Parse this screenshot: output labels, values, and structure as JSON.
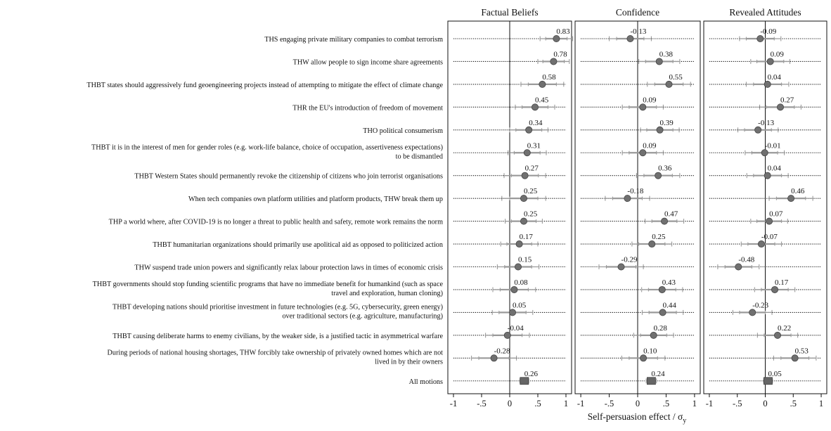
{
  "chart_data": {
    "type": "scatter",
    "subtype": "forest-plot-with-confidence-intervals",
    "x_label_parts": {
      "main": "Self-persuasion effect / σ",
      "subscript": "y"
    },
    "xlim": [
      -1.1,
      1.1
    ],
    "x_ticks": [
      -1,
      -0.5,
      0,
      0.5,
      1
    ],
    "x_tick_labels": [
      "-1",
      "-.5",
      "0",
      ".5",
      "1"
    ],
    "reference_line": 0,
    "grid": false,
    "colors": {
      "point": "#707070",
      "summary": "#666666",
      "ci": "#9a9a9a",
      "row_line": "#111111"
    },
    "motions": [
      [
        "THS engaging private military companies to combat terrorism"
      ],
      [
        "THW allow people to sign income share agreements"
      ],
      [
        "THBT states should aggressively fund geoengineering projects instead of attempting to mitigate the effect of climate change"
      ],
      [
        "THR the EU's introduction of freedom of movement"
      ],
      [
        "THO political consumerism"
      ],
      [
        "THBT it is in the interest of men for gender roles (e.g. work-life balance, choice of occupation, assertiveness expectations)",
        "to be dismantled"
      ],
      [
        "THBT Western States should permanently revoke the citizenship of citizens who join terrorist organisations"
      ],
      [
        "When tech companies own platform utilities and platform products, THW break them up"
      ],
      [
        "THP a world where, after COVID-19 is no longer a threat to public health and safety, remote work remains the norm"
      ],
      [
        "THBT humanitarian organizations should primarily use apolitical aid as opposed to politicized action"
      ],
      [
        "THW suspend trade union powers and significantly relax labour protection laws in times of economic crisis"
      ],
      [
        "THBT governments should stop funding scientific programs that have no immediate benefit for humankind (such as space",
        "travel and exploration, human cloning)"
      ],
      [
        "THBT developing nations should prioritise investment in future technologies (e.g. 5G, cybersecurity, green energy)",
        "over traditional sectors (e.g. agriculture, manufacturing)"
      ],
      [
        "THBT causing deliberate harms to enemy civilians, by the weaker side, is a justified tactic in asymmetrical warfare"
      ],
      [
        "During periods of national housing shortages, THW forcibly take ownership of privately owned homes which are not",
        "lived in by their owners"
      ],
      [
        "All motions"
      ]
    ],
    "panels": [
      {
        "name": "Factual Beliefs",
        "estimates": [
          0.83,
          0.78,
          0.58,
          0.45,
          0.34,
          0.31,
          0.27,
          0.25,
          0.25,
          0.17,
          0.15,
          0.08,
          0.05,
          -0.04,
          -0.28,
          0.26
        ],
        "labels": [
          "0.83",
          "0.78",
          "0.58",
          "0.45",
          "0.34",
          "0.31",
          "0.27",
          "0.25",
          "0.25",
          "0.17",
          "0.15",
          "0.08",
          "0.05",
          "-0.04",
          "-0.28",
          "0.26"
        ],
        "ci_outer": [
          [
            0.54,
            1.12
          ],
          [
            0.5,
            1.06
          ],
          [
            0.2,
            0.96
          ],
          [
            0.1,
            0.8
          ],
          [
            0.0,
            0.68
          ],
          [
            -0.03,
            0.65
          ],
          [
            -0.1,
            0.64
          ],
          [
            -0.14,
            0.64
          ],
          [
            -0.08,
            0.58
          ],
          [
            -0.16,
            0.5
          ],
          [
            -0.22,
            0.52
          ],
          [
            -0.3,
            0.46
          ],
          [
            -0.31,
            0.41
          ],
          [
            -0.43,
            0.35
          ],
          [
            -0.68,
            0.12
          ],
          [
            0.18,
            0.34
          ]
        ],
        "ci_inner": [
          [
            0.64,
            1.02
          ],
          [
            0.59,
            0.97
          ],
          [
            0.33,
            0.83
          ],
          [
            0.22,
            0.68
          ],
          [
            0.11,
            0.57
          ],
          [
            0.08,
            0.54
          ],
          [
            0.03,
            0.51
          ],
          [
            0.0,
            0.5
          ],
          [
            0.03,
            0.47
          ],
          [
            -0.05,
            0.39
          ],
          [
            -0.09,
            0.39
          ],
          [
            -0.17,
            0.33
          ],
          [
            -0.19,
            0.29
          ],
          [
            -0.3,
            0.22
          ],
          [
            -0.55,
            -0.01
          ],
          [
            0.21,
            0.31
          ]
        ]
      },
      {
        "name": "Confidence",
        "estimates": [
          -0.13,
          0.38,
          0.55,
          0.09,
          0.39,
          0.09,
          0.36,
          -0.18,
          0.47,
          0.25,
          -0.29,
          0.43,
          0.44,
          0.28,
          0.1,
          0.24
        ],
        "labels": [
          "-0.13",
          "0.38",
          "0.55",
          "0.09",
          "0.39",
          "0.09",
          "0.36",
          "-0.18",
          "0.47",
          "0.25",
          "-0.29",
          "0.43",
          "0.44",
          "0.28",
          "0.10",
          "0.24"
        ],
        "ci_outer": [
          [
            -0.5,
            0.24
          ],
          [
            0.02,
            0.74
          ],
          [
            0.17,
            0.93
          ],
          [
            -0.27,
            0.45
          ],
          [
            0.05,
            0.73
          ],
          [
            -0.27,
            0.45
          ],
          [
            -0.02,
            0.74
          ],
          [
            -0.57,
            0.21
          ],
          [
            0.13,
            0.81
          ],
          [
            -0.1,
            0.6
          ],
          [
            -0.68,
            0.1
          ],
          [
            0.07,
            0.79
          ],
          [
            0.08,
            0.8
          ],
          [
            -0.07,
            0.63
          ],
          [
            -0.28,
            0.48
          ],
          [
            0.15,
            0.33
          ]
        ],
        "ci_inner": [
          [
            -0.37,
            0.11
          ],
          [
            0.14,
            0.62
          ],
          [
            0.3,
            0.8
          ],
          [
            -0.15,
            0.33
          ],
          [
            0.16,
            0.62
          ],
          [
            -0.15,
            0.33
          ],
          [
            0.11,
            0.61
          ],
          [
            -0.44,
            0.08
          ],
          [
            0.25,
            0.69
          ],
          [
            0.02,
            0.48
          ],
          [
            -0.55,
            -0.03
          ],
          [
            0.19,
            0.67
          ],
          [
            0.2,
            0.68
          ],
          [
            0.05,
            0.51
          ],
          [
            -0.15,
            0.35
          ],
          [
            0.18,
            0.3
          ]
        ]
      },
      {
        "name": "Revealed Attitudes",
        "estimates": [
          -0.09,
          0.09,
          0.04,
          0.27,
          -0.13,
          -0.01,
          0.04,
          0.46,
          0.07,
          -0.07,
          -0.48,
          0.17,
          -0.23,
          0.22,
          0.53,
          0.05
        ],
        "labels": [
          "-0.09",
          "0.09",
          "0.04",
          "0.27",
          "-0.13",
          "-0.01",
          "0.04",
          "0.46",
          "0.07",
          "-0.07",
          "-0.48",
          "0.17",
          "-0.23",
          "0.22",
          "0.53",
          "0.05"
        ],
        "ci_outer": [
          [
            -0.46,
            0.28
          ],
          [
            -0.26,
            0.44
          ],
          [
            -0.34,
            0.42
          ],
          [
            -0.1,
            0.64
          ],
          [
            -0.49,
            0.23
          ],
          [
            -0.36,
            0.34
          ],
          [
            -0.33,
            0.41
          ],
          [
            0.07,
            0.85
          ],
          [
            -0.26,
            0.4
          ],
          [
            -0.43,
            0.29
          ],
          [
            -0.85,
            -0.11
          ],
          [
            -0.19,
            0.53
          ],
          [
            -0.58,
            0.12
          ],
          [
            -0.14,
            0.58
          ],
          [
            0.15,
            0.91
          ],
          [
            -0.03,
            0.13
          ]
        ],
        "ci_inner": [
          [
            -0.34,
            0.16
          ],
          [
            -0.15,
            0.33
          ],
          [
            -0.21,
            0.29
          ],
          [
            0.02,
            0.52
          ],
          [
            -0.37,
            0.11
          ],
          [
            -0.24,
            0.22
          ],
          [
            -0.21,
            0.29
          ],
          [
            0.2,
            0.72
          ],
          [
            -0.15,
            0.29
          ],
          [
            -0.31,
            0.17
          ],
          [
            -0.72,
            -0.24
          ],
          [
            -0.07,
            0.41
          ],
          [
            -0.46,
            0.0
          ],
          [
            -0.02,
            0.46
          ],
          [
            0.28,
            0.78
          ],
          [
            0.0,
            0.1
          ]
        ]
      }
    ]
  }
}
